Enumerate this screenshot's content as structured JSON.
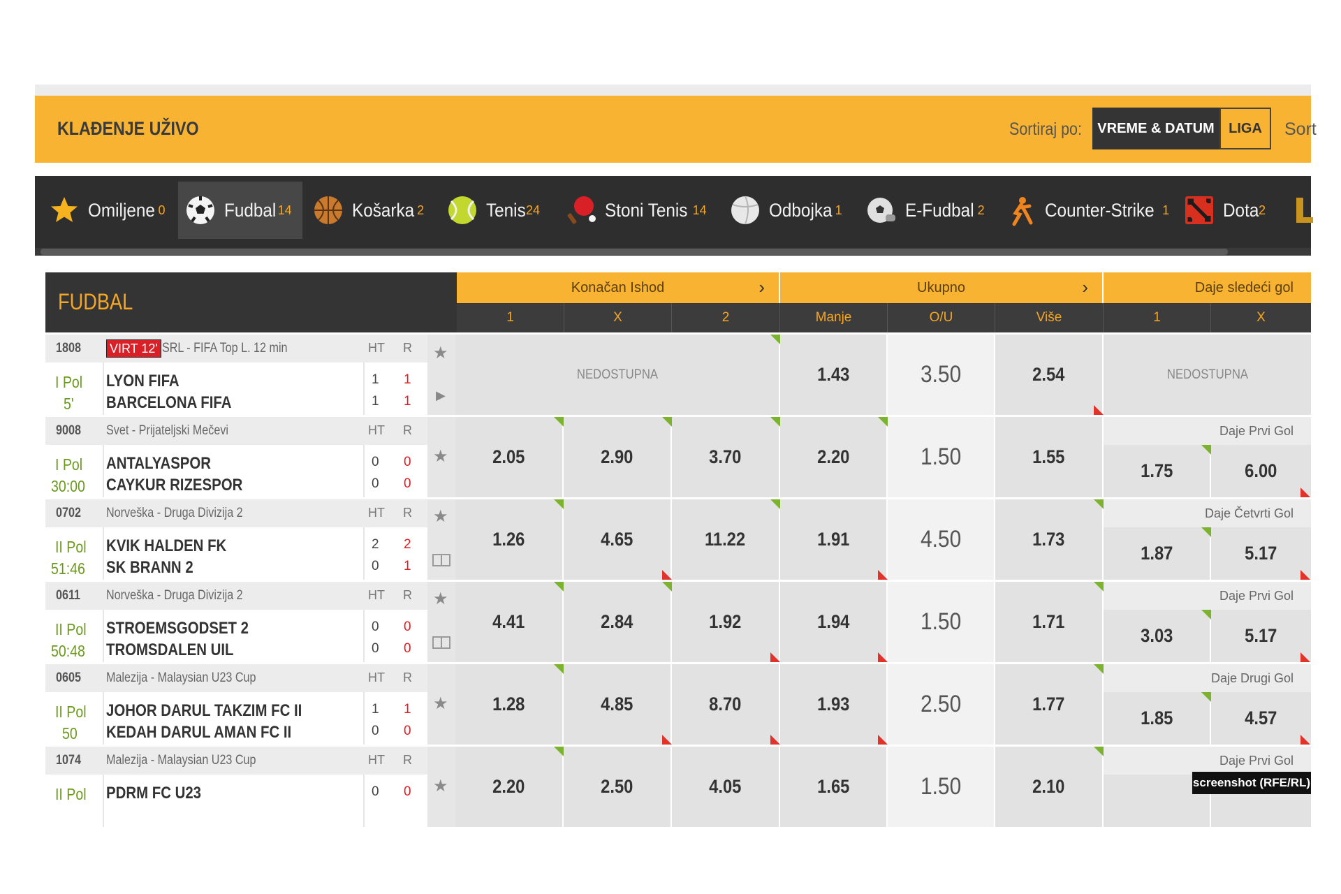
{
  "header": {
    "title": "KLAĐENJE UŽIVO",
    "sort_label": "Sortiraj po:",
    "sort_options": [
      "VREME & DATUM",
      "LIGA"
    ],
    "sort_more": "Sort"
  },
  "sports": [
    {
      "name": "Omiljene",
      "count": "0",
      "icon": "star-icon"
    },
    {
      "name": "Fudbal",
      "count": "14",
      "icon": "soccer-ball-icon"
    },
    {
      "name": "Košarka",
      "count": "2",
      "icon": "basketball-icon"
    },
    {
      "name": "Tenis",
      "count": "24",
      "icon": "tennis-ball-icon"
    },
    {
      "name": "Stoni Tenis",
      "count": "14",
      "icon": "table-tennis-icon"
    },
    {
      "name": "Odbojka",
      "count": "1",
      "icon": "volleyball-icon"
    },
    {
      "name": "E-Fudbal",
      "count": "2",
      "icon": "efootball-icon"
    },
    {
      "name": "Counter-Strike",
      "count": "1",
      "icon": "counter-strike-icon"
    },
    {
      "name": "Dota",
      "count": "2",
      "icon": "dota-icon"
    }
  ],
  "table": {
    "section_title": "FUDBAL",
    "groups": [
      "Konačan Ishod",
      "Ukupno",
      "Daje sledeći gol"
    ],
    "columns": [
      "1",
      "X",
      "2",
      "Manje",
      "O/U",
      "Više",
      "1",
      "X"
    ],
    "ht_label": "HT",
    "r_label": "R",
    "unavailable": "NEDOSTUPNA"
  },
  "events": [
    {
      "code": "1808",
      "virt": "VIRT 12'",
      "league": "SRL - FIFA Top L. 12 min",
      "period": "I Pol",
      "time": "5'",
      "home": "LYON FIFA",
      "away": "BARCELONA FIFA",
      "ht_home": "1",
      "ht_away": "1",
      "r_home": "1",
      "r_away": "1",
      "odds_1": "",
      "odds_x": "",
      "odds_2": "",
      "under": "1.43",
      "line": "3.50",
      "over": "2.54",
      "next_label": "",
      "next_1": "",
      "next_x": ""
    },
    {
      "code": "9008",
      "virt": "",
      "league": "Svet - Prijateljski Mečevi",
      "period": "I Pol",
      "time": "30:00",
      "home": "ANTALYASPOR",
      "away": "CAYKUR RIZESPOR",
      "ht_home": "0",
      "ht_away": "0",
      "r_home": "0",
      "r_away": "0",
      "odds_1": "2.05",
      "odds_x": "2.90",
      "odds_2": "3.70",
      "under": "2.20",
      "line": "1.50",
      "over": "1.55",
      "next_label": "Daje Prvi Gol",
      "next_1": "1.75",
      "next_x": "6.00"
    },
    {
      "code": "0702",
      "virt": "",
      "league": "Norveška - Druga Divizija 2",
      "period": "II Pol",
      "time": "51:46",
      "home": "KVIK HALDEN FK",
      "away": "SK BRANN 2",
      "ht_home": "2",
      "ht_away": "0",
      "r_home": "2",
      "r_away": "1",
      "odds_1": "1.26",
      "odds_x": "4.65",
      "odds_2": "11.22",
      "under": "1.91",
      "line": "4.50",
      "over": "1.73",
      "next_label": "Daje Četvrti Gol",
      "next_1": "1.87",
      "next_x": "5.17"
    },
    {
      "code": "0611",
      "virt": "",
      "league": "Norveška - Druga Divizija 2",
      "period": "II Pol",
      "time": "50:48",
      "home": "STROEMSGODSET 2",
      "away": "TROMSDALEN UIL",
      "ht_home": "0",
      "ht_away": "0",
      "r_home": "0",
      "r_away": "0",
      "odds_1": "4.41",
      "odds_x": "2.84",
      "odds_2": "1.92",
      "under": "1.94",
      "line": "1.50",
      "over": "1.71",
      "next_label": "Daje Prvi Gol",
      "next_1": "3.03",
      "next_x": "5.17"
    },
    {
      "code": "0605",
      "virt": "",
      "league": "Malezija - Malaysian U23 Cup",
      "period": "II Pol",
      "time": "50",
      "home": "JOHOR DARUL TAKZIM FC II",
      "away": "KEDAH DARUL AMAN FC II",
      "ht_home": "1",
      "ht_away": "0",
      "r_home": "1",
      "r_away": "0",
      "odds_1": "1.28",
      "odds_x": "4.85",
      "odds_2": "8.70",
      "under": "1.93",
      "line": "2.50",
      "over": "1.77",
      "next_label": "Daje Drugi Gol",
      "next_1": "1.85",
      "next_x": "4.57"
    },
    {
      "code": "1074",
      "virt": "",
      "league": "Malezija - Malaysian U23 Cup",
      "period": "II Pol",
      "time": "",
      "home": "PDRM FC U23",
      "away": "",
      "ht_home": "0",
      "ht_away": "",
      "r_home": "0",
      "r_away": "",
      "odds_1": "2.20",
      "odds_x": "2.50",
      "odds_2": "4.05",
      "under": "1.65",
      "line": "1.50",
      "over": "2.10",
      "next_label": "Daje Prvi Gol",
      "next_1": "",
      "next_x": ""
    }
  ],
  "watermark": "screenshot (RFE/RL)",
  "colors": {
    "accent": "#f9b333",
    "dark_bar": "#2e2e2e",
    "live_green": "#6a9a1a",
    "score_red": "#d92027",
    "odds_up": "#7bb32e",
    "odds_down": "#e2332b"
  }
}
